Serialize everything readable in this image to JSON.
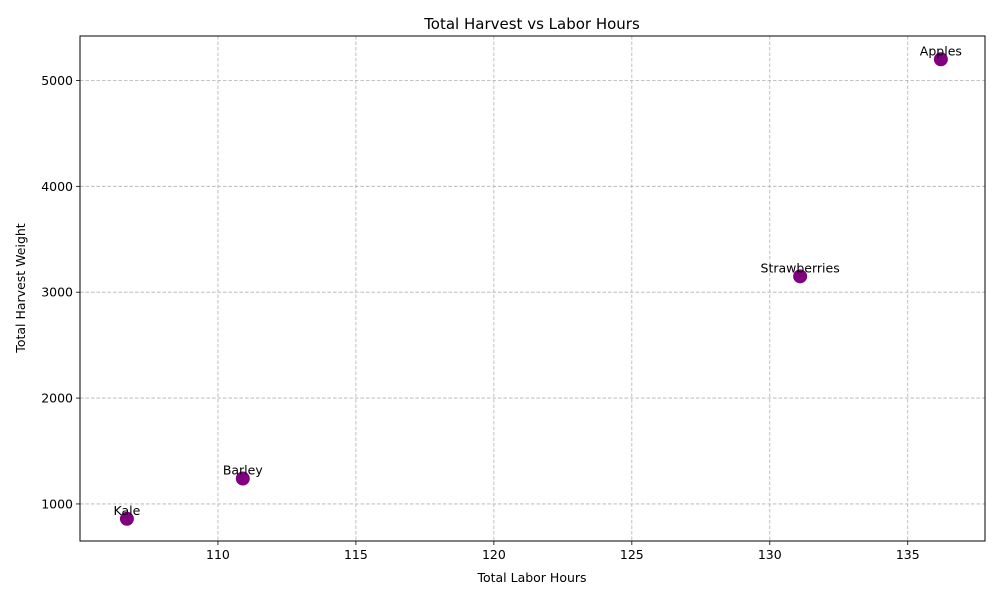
{
  "chart_data": {
    "type": "scatter",
    "title": "Total Harvest vs Labor Hours",
    "xlabel": "Total Labor Hours",
    "ylabel": "Total Harvest Weight",
    "xlim": [
      105.0,
      137.8
    ],
    "ylim": [
      650,
      5420
    ],
    "xticks": [
      110,
      115,
      120,
      125,
      130,
      135
    ],
    "yticks": [
      1000,
      2000,
      3000,
      4000,
      5000
    ],
    "grid": true,
    "grid_style": "dashed",
    "marker_color": "#800080",
    "points": [
      {
        "label": "Kale",
        "x": 106.7,
        "y": 860
      },
      {
        "label": "Barley",
        "x": 110.9,
        "y": 1240
      },
      {
        "label": "Strawberries",
        "x": 131.1,
        "y": 3150
      },
      {
        "label": "Apples",
        "x": 136.2,
        "y": 5200
      }
    ]
  }
}
